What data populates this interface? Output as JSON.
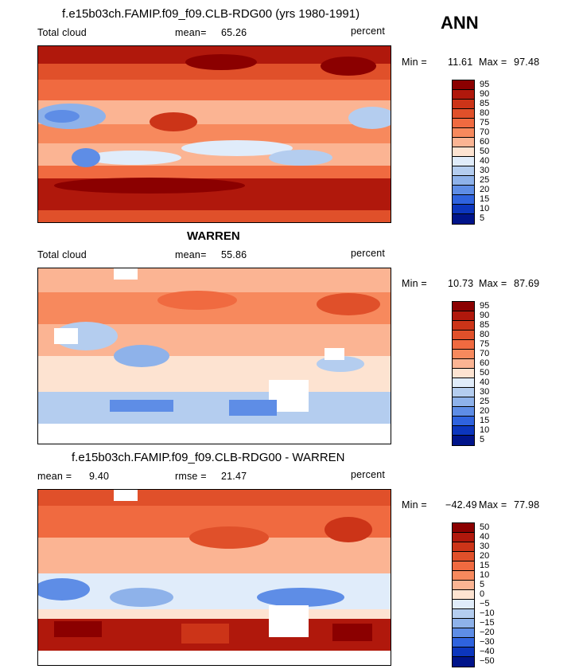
{
  "season": "ANN",
  "units": "percent",
  "panels": [
    {
      "title": "f.e15b03ch.FAMIP.f09_f09.CLB-RDG00 (yrs 1980-1991)",
      "left_label": "Total cloud",
      "stat_label": "mean=",
      "stat_value": "65.26",
      "units": "percent",
      "min_label": "Min =",
      "min_value": "11.61",
      "max_label": "Max =",
      "max_value": "97.48",
      "levels": [
        "95",
        "90",
        "85",
        "80",
        "75",
        "70",
        "60",
        "50",
        "40",
        "30",
        "25",
        "20",
        "15",
        "10",
        "5"
      ]
    },
    {
      "title": "WARREN",
      "left_label": "Total cloud",
      "stat_label": "mean=",
      "stat_value": "55.86",
      "units": "percent",
      "min_label": "Min =",
      "min_value": "10.73",
      "max_label": "Max =",
      "max_value": "87.69",
      "levels": [
        "95",
        "90",
        "85",
        "80",
        "75",
        "70",
        "60",
        "50",
        "40",
        "30",
        "25",
        "20",
        "15",
        "10",
        "5"
      ]
    },
    {
      "title": "f.e15b03ch.FAMIP.f09_f09.CLB-RDG00 - WARREN",
      "left_label": "mean =",
      "left_value": "9.40",
      "stat_label": "rmse =",
      "stat_value": "21.47",
      "units": "percent",
      "min_label": "Min =",
      "min_value": "−42.49",
      "max_label": "Max =",
      "max_value": "77.98",
      "levels": [
        "50",
        "40",
        "30",
        "20",
        "15",
        "10",
        "5",
        "0",
        "−5",
        "−10",
        "−15",
        "−20",
        "−30",
        "−40",
        "−50"
      ]
    }
  ],
  "colorbar_colors": [
    "#8b0000",
    "#b0180c",
    "#cc3418",
    "#e0502a",
    "#f06a40",
    "#f7895d",
    "#fbb493",
    "#fde3d1",
    "#e0ecfa",
    "#b4cdef",
    "#8eb2ea",
    "#5e8de6",
    "#2f63de",
    "#0c36bd",
    "#00148a"
  ],
  "land_color": "#ffffff",
  "missing_color": "#ffffff"
}
